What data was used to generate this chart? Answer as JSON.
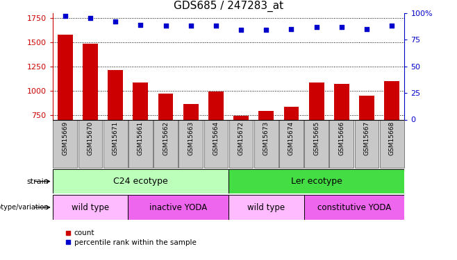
{
  "title": "GDS685 / 247283_at",
  "samples": [
    "GSM15669",
    "GSM15670",
    "GSM15671",
    "GSM15661",
    "GSM15662",
    "GSM15663",
    "GSM15664",
    "GSM15672",
    "GSM15673",
    "GSM15674",
    "GSM15665",
    "GSM15666",
    "GSM15667",
    "GSM15668"
  ],
  "bar_values": [
    1580,
    1480,
    1210,
    1080,
    970,
    860,
    990,
    740,
    790,
    835,
    1080,
    1070,
    950,
    1100
  ],
  "percentile_values": [
    97,
    95,
    92,
    89,
    88,
    88,
    88,
    84,
    84,
    85,
    87,
    87,
    85,
    88
  ],
  "left_ylim": [
    700,
    1800
  ],
  "right_ylim": [
    0,
    100
  ],
  "left_yticks": [
    750,
    1000,
    1250,
    1500,
    1750
  ],
  "right_yticks": [
    0,
    25,
    50,
    75,
    100
  ],
  "right_yticklabels": [
    "0",
    "25",
    "50",
    "75",
    "100%"
  ],
  "bar_color": "#cc0000",
  "dot_color": "#0000cc",
  "tick_bg_color": "#c8c8c8",
  "strain_regions": [
    {
      "text": "C24 ecotype",
      "start": 0,
      "end": 7,
      "color": "#bbffbb"
    },
    {
      "text": "Ler ecotype",
      "start": 7,
      "end": 14,
      "color": "#44dd44"
    }
  ],
  "genotype_regions": [
    {
      "text": "wild type",
      "start": 0,
      "end": 3,
      "color": "#ffbbff"
    },
    {
      "text": "inactive YODA",
      "start": 3,
      "end": 7,
      "color": "#ee66ee"
    },
    {
      "text": "wild type",
      "start": 7,
      "end": 10,
      "color": "#ffbbff"
    },
    {
      "text": "constitutive YODA",
      "start": 10,
      "end": 14,
      "color": "#ee66ee"
    }
  ],
  "legend_items": [
    {
      "label": "count",
      "color": "#cc0000"
    },
    {
      "label": "percentile rank within the sample",
      "color": "#0000cc"
    }
  ],
  "title_fontsize": 11,
  "sample_fontsize": 6.5,
  "band_fontsize": 9,
  "side_label_fontsize": 8
}
